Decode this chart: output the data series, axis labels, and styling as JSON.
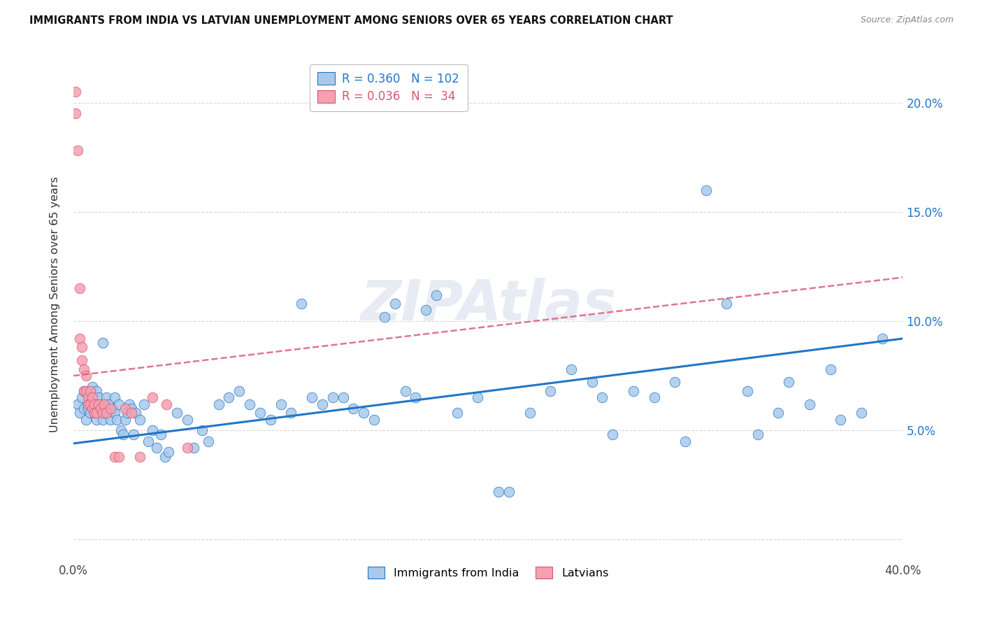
{
  "title": "IMMIGRANTS FROM INDIA VS LATVIAN UNEMPLOYMENT AMONG SENIORS OVER 65 YEARS CORRELATION CHART",
  "source": "Source: ZipAtlas.com",
  "ylabel": "Unemployment Among Seniors over 65 years",
  "xlim": [
    0.0,
    0.4
  ],
  "ylim": [
    -0.01,
    0.225
  ],
  "xticks": [
    0.0,
    0.05,
    0.1,
    0.15,
    0.2,
    0.25,
    0.3,
    0.35,
    0.4
  ],
  "yticks": [
    0.0,
    0.05,
    0.1,
    0.15,
    0.2
  ],
  "blue_color": "#aac9ea",
  "pink_color": "#f4a0b0",
  "blue_line_color": "#2176c7",
  "pink_line_color": "#d9546e",
  "legend_R_blue": "0.360",
  "legend_N_blue": "102",
  "legend_R_pink": "0.036",
  "legend_N_pink": "34",
  "legend_label_blue": "Immigrants from India",
  "legend_label_pink": "Latvians",
  "watermark": "ZIPAtlas",
  "blue_scatter_x": [
    0.002,
    0.003,
    0.004,
    0.005,
    0.005,
    0.006,
    0.007,
    0.007,
    0.008,
    0.008,
    0.009,
    0.009,
    0.01,
    0.01,
    0.011,
    0.011,
    0.012,
    0.012,
    0.013,
    0.013,
    0.014,
    0.014,
    0.015,
    0.015,
    0.016,
    0.016,
    0.017,
    0.017,
    0.018,
    0.019,
    0.02,
    0.02,
    0.021,
    0.022,
    0.023,
    0.024,
    0.025,
    0.026,
    0.027,
    0.028,
    0.029,
    0.03,
    0.032,
    0.034,
    0.036,
    0.038,
    0.04,
    0.042,
    0.044,
    0.046,
    0.05,
    0.055,
    0.058,
    0.062,
    0.065,
    0.07,
    0.075,
    0.08,
    0.085,
    0.09,
    0.095,
    0.1,
    0.105,
    0.11,
    0.115,
    0.12,
    0.125,
    0.13,
    0.135,
    0.14,
    0.145,
    0.15,
    0.155,
    0.16,
    0.165,
    0.17,
    0.175,
    0.185,
    0.195,
    0.205,
    0.21,
    0.22,
    0.23,
    0.24,
    0.25,
    0.255,
    0.26,
    0.27,
    0.28,
    0.29,
    0.295,
    0.305,
    0.315,
    0.325,
    0.33,
    0.34,
    0.345,
    0.355,
    0.365,
    0.37,
    0.38,
    0.39
  ],
  "blue_scatter_y": [
    0.062,
    0.058,
    0.065,
    0.06,
    0.068,
    0.055,
    0.062,
    0.06,
    0.065,
    0.058,
    0.07,
    0.063,
    0.06,
    0.058,
    0.068,
    0.055,
    0.065,
    0.06,
    0.058,
    0.062,
    0.09,
    0.055,
    0.062,
    0.058,
    0.065,
    0.06,
    0.058,
    0.062,
    0.055,
    0.06,
    0.065,
    0.058,
    0.055,
    0.062,
    0.05,
    0.048,
    0.055,
    0.058,
    0.062,
    0.06,
    0.048,
    0.058,
    0.055,
    0.062,
    0.045,
    0.05,
    0.042,
    0.048,
    0.038,
    0.04,
    0.058,
    0.055,
    0.042,
    0.05,
    0.045,
    0.062,
    0.065,
    0.068,
    0.062,
    0.058,
    0.055,
    0.062,
    0.058,
    0.108,
    0.065,
    0.062,
    0.065,
    0.065,
    0.06,
    0.058,
    0.055,
    0.102,
    0.108,
    0.068,
    0.065,
    0.105,
    0.112,
    0.058,
    0.065,
    0.022,
    0.022,
    0.058,
    0.068,
    0.078,
    0.072,
    0.065,
    0.048,
    0.068,
    0.065,
    0.072,
    0.045,
    0.16,
    0.108,
    0.068,
    0.048,
    0.058,
    0.072,
    0.062,
    0.078,
    0.055,
    0.058,
    0.092
  ],
  "pink_scatter_x": [
    0.001,
    0.001,
    0.002,
    0.003,
    0.003,
    0.004,
    0.004,
    0.005,
    0.005,
    0.006,
    0.006,
    0.007,
    0.007,
    0.008,
    0.008,
    0.009,
    0.009,
    0.01,
    0.01,
    0.011,
    0.012,
    0.013,
    0.014,
    0.015,
    0.016,
    0.018,
    0.02,
    0.022,
    0.025,
    0.028,
    0.032,
    0.038,
    0.045,
    0.055
  ],
  "pink_scatter_y": [
    0.205,
    0.195,
    0.178,
    0.115,
    0.092,
    0.088,
    0.082,
    0.078,
    0.068,
    0.075,
    0.068,
    0.065,
    0.062,
    0.068,
    0.062,
    0.065,
    0.06,
    0.062,
    0.058,
    0.058,
    0.062,
    0.06,
    0.058,
    0.062,
    0.058,
    0.06,
    0.038,
    0.038,
    0.06,
    0.058,
    0.038,
    0.065,
    0.062,
    0.042
  ],
  "blue_trend_x": [
    0.0,
    0.4
  ],
  "blue_trend_y": [
    0.044,
    0.092
  ],
  "pink_trend_x": [
    0.0,
    0.4
  ],
  "pink_trend_y": [
    0.075,
    0.12
  ]
}
